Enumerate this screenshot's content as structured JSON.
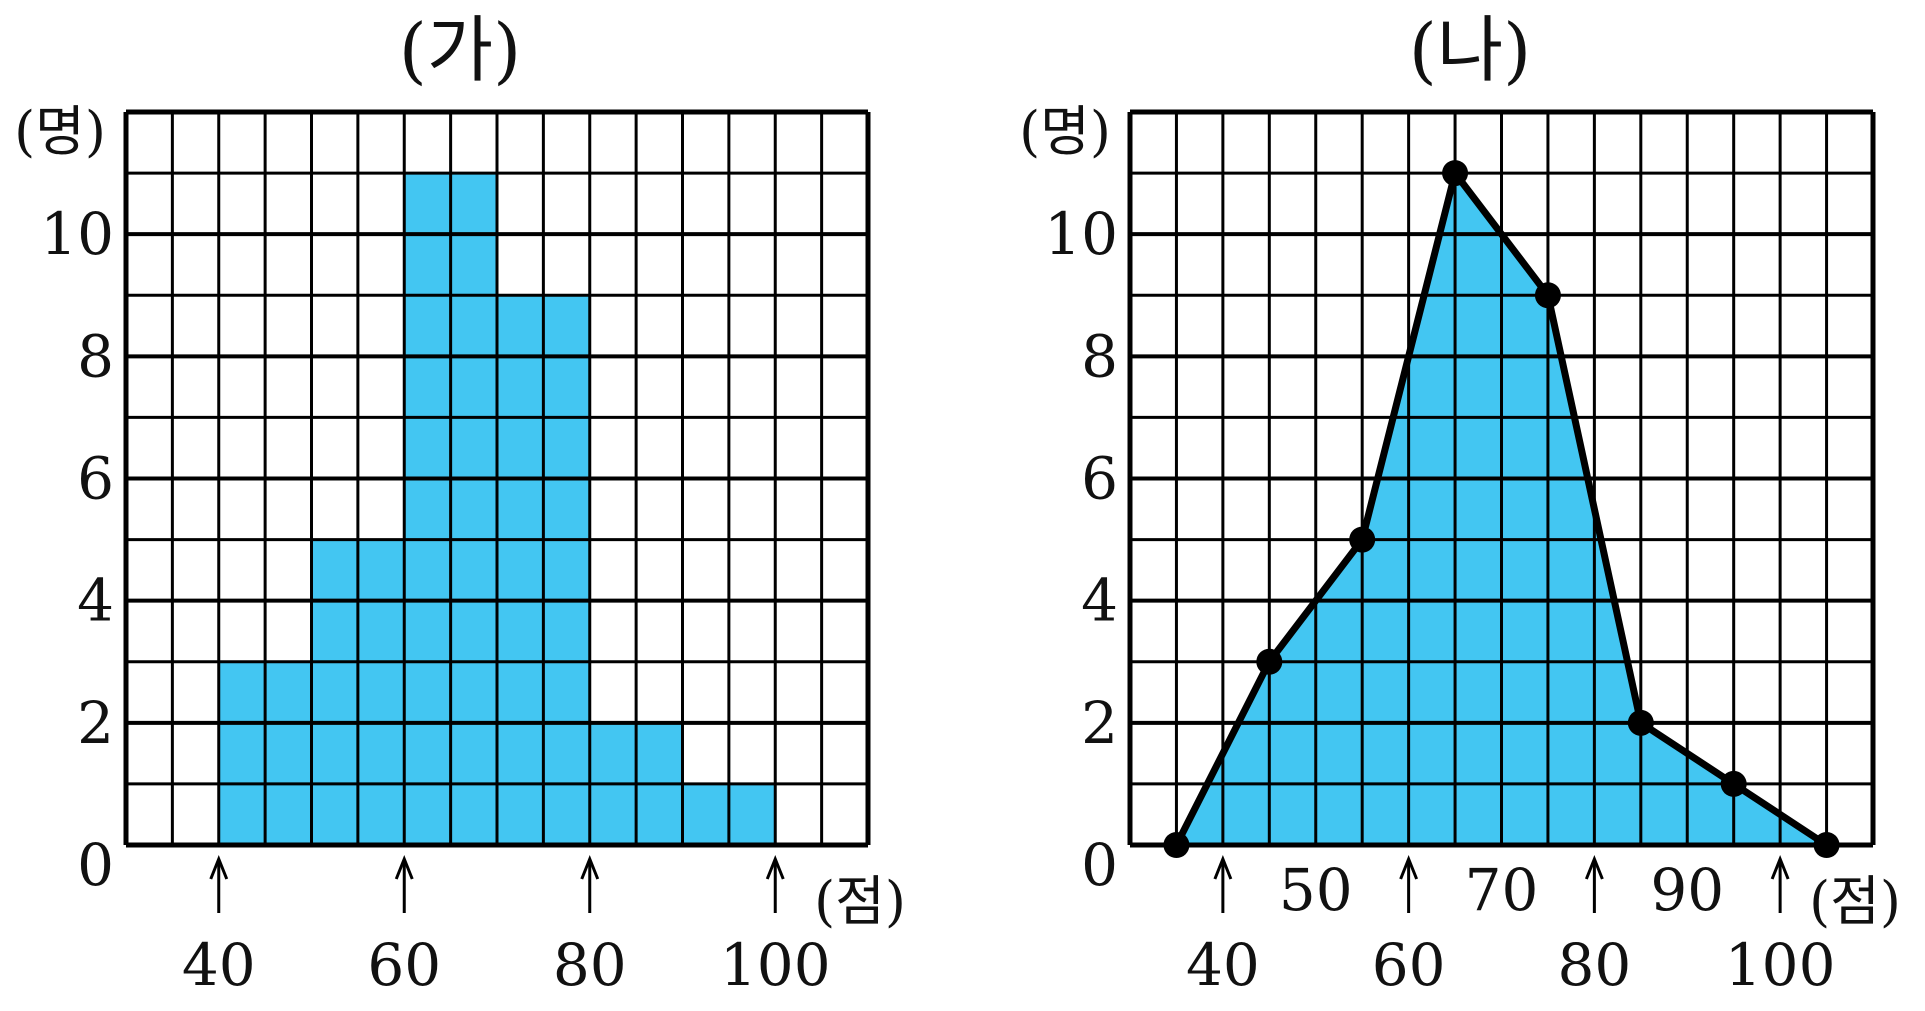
{
  "colors": {
    "fill": "#43C6F2",
    "grid": "#000000",
    "line": "#000000",
    "background": "#ffffff"
  },
  "chart_data": [
    {
      "type": "bar",
      "title": "(가)",
      "ylabel": "(명)",
      "xlabel": "(점)",
      "ylim": [
        0,
        12
      ],
      "xlim": [
        30,
        110
      ],
      "grid": true,
      "y_tick_labels": [
        "0",
        "2",
        "4",
        "6",
        "8",
        "10"
      ],
      "x_tick_labels": [
        "40",
        "60",
        "80",
        "100"
      ],
      "bins": [
        {
          "from": 40,
          "to": 50,
          "value": 3
        },
        {
          "from": 50,
          "to": 60,
          "value": 5
        },
        {
          "from": 60,
          "to": 70,
          "value": 11
        },
        {
          "from": 70,
          "to": 80,
          "value": 9
        },
        {
          "from": 80,
          "to": 90,
          "value": 2
        },
        {
          "from": 90,
          "to": 100,
          "value": 1
        }
      ]
    },
    {
      "type": "area",
      "title": "(나)",
      "ylabel": "(명)",
      "xlabel": "(점)",
      "ylim": [
        0,
        12
      ],
      "xlim": [
        30,
        110
      ],
      "grid": true,
      "y_tick_labels": [
        "0",
        "2",
        "4",
        "6",
        "8",
        "10"
      ],
      "x_tick_labels_bottom": [
        "40",
        "60",
        "80",
        "100"
      ],
      "x_tick_labels_mid": [
        "50",
        "70",
        "90"
      ],
      "points": [
        {
          "x": 35,
          "y": 0
        },
        {
          "x": 45,
          "y": 3
        },
        {
          "x": 55,
          "y": 5
        },
        {
          "x": 65,
          "y": 11
        },
        {
          "x": 75,
          "y": 9
        },
        {
          "x": 85,
          "y": 2
        },
        {
          "x": 95,
          "y": 1
        },
        {
          "x": 105,
          "y": 0
        }
      ]
    }
  ]
}
